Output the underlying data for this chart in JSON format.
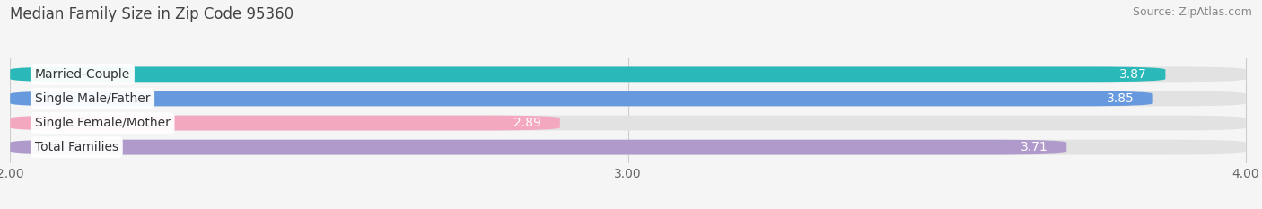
{
  "title": "Median Family Size in Zip Code 95360",
  "source": "Source: ZipAtlas.com",
  "categories": [
    "Married-Couple",
    "Single Male/Father",
    "Single Female/Mother",
    "Total Families"
  ],
  "values": [
    3.87,
    3.85,
    2.89,
    3.71
  ],
  "bar_colors": [
    "#2ab8b8",
    "#6699dd",
    "#f4a8c0",
    "#b09acb"
  ],
  "bar_bg_color": "#e2e2e2",
  "xlim_min": 2.0,
  "xlim_max": 4.0,
  "xticks": [
    2.0,
    3.0,
    4.0
  ],
  "xtick_labels": [
    "2.00",
    "3.00",
    "4.00"
  ],
  "title_fontsize": 12,
  "source_fontsize": 9,
  "label_fontsize": 10,
  "value_fontsize": 10,
  "tick_fontsize": 10,
  "bar_height": 0.62,
  "background_color": "#f5f5f5",
  "label_text_color": "#333333",
  "value_text_color": "#ffffff",
  "grid_color": "#cccccc"
}
